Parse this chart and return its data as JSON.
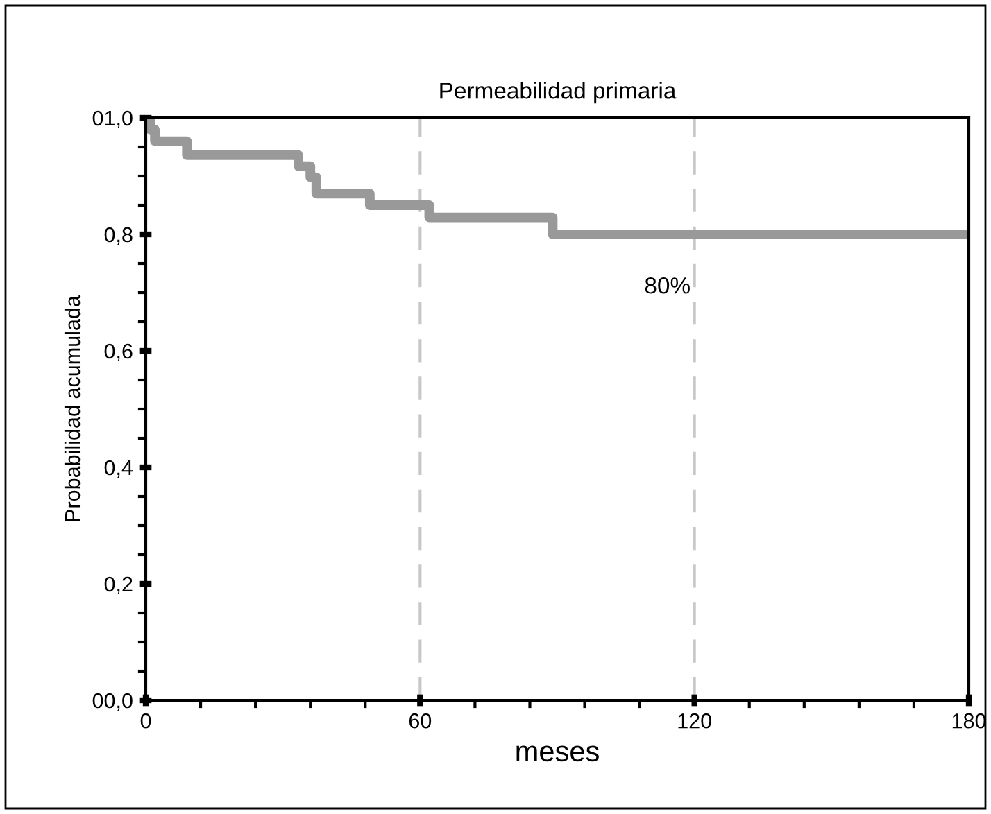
{
  "chart_data": {
    "type": "step",
    "title": "Permeabilidad primaria",
    "xlabel": "meses",
    "ylabel": "Probabilidad acumulada",
    "x": [
      0,
      1,
      2,
      9,
      33.4,
      36,
      37.3,
      49,
      62,
      89,
      180
    ],
    "series": [
      {
        "color": "#999999",
        "values": [
          1.0,
          0.98,
          0.96,
          0.936,
          0.917,
          0.898,
          0.87,
          0.85,
          0.829,
          0.8,
          0.8
        ]
      }
    ],
    "xlim": [
      0,
      180
    ],
    "xticks": [
      0,
      60,
      120,
      180
    ],
    "ylim": [
      0,
      1
    ],
    "yticks": [
      {
        "value": 0,
        "label": "00,0"
      },
      {
        "value": 0.2,
        "label": "0,2"
      },
      {
        "value": 0.4,
        "label": "0,4"
      },
      {
        "value": 0.6,
        "label": "0,6"
      },
      {
        "value": 0.8,
        "label": "0,8"
      },
      {
        "value": 1.0,
        "label": "01,0"
      }
    ],
    "ref_lines": [
      {
        "axis": "x",
        "value": 60,
        "color": "#c8c8c8",
        "line_style": "dashed"
      },
      {
        "axis": "x",
        "value": 120,
        "color": "#c8c8c8",
        "line_style": "dashed"
      }
    ],
    "annotations": [
      {
        "text": "80%",
        "x": 120,
        "y": 0.8
      }
    ],
    "grid": false,
    "legend": false,
    "marker": "none",
    "line_style": "solid"
  }
}
